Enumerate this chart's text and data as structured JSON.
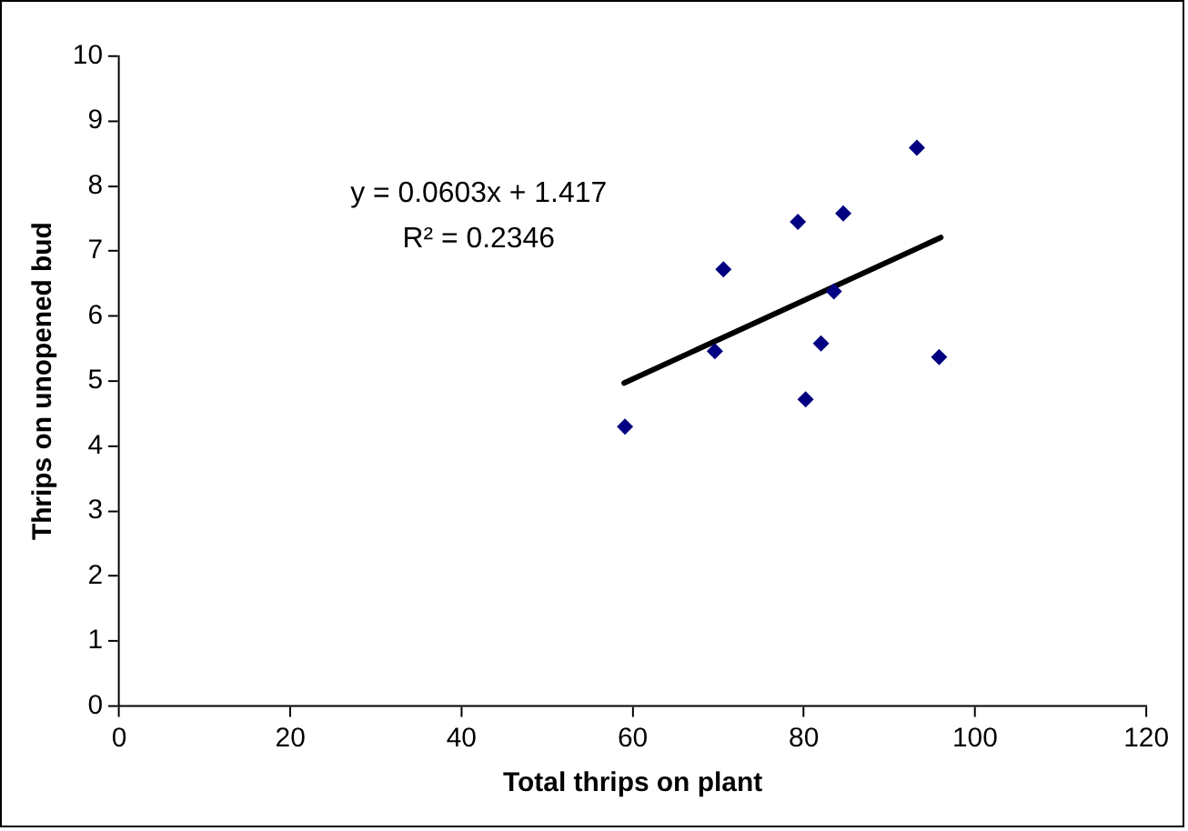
{
  "chart_data": {
    "type": "scatter",
    "xlabel": "Total thrips on plant",
    "ylabel": "Thrips on unopened bud",
    "series": [
      {
        "color": "#000080",
        "x": [
          59.1,
          69.6,
          70.6,
          79.3,
          80.2,
          82.0,
          83.5,
          84.6,
          93.2,
          95.8
        ],
        "values": [
          4.3,
          5.46,
          6.72,
          7.45,
          4.72,
          5.58,
          6.38,
          7.58,
          8.59,
          5.37
        ]
      },
      {
        "type": "line",
        "color": "#000000",
        "marker": "none",
        "x": [
          59,
          96
        ],
        "values": [
          4.97,
          7.21
        ]
      }
    ],
    "xlim": [
      0,
      120
    ],
    "xticks": [
      0,
      20,
      40,
      60,
      80,
      100,
      120
    ],
    "ylim": [
      0,
      10
    ],
    "yticks": [
      0,
      1,
      2,
      3,
      4,
      5,
      6,
      7,
      8,
      9,
      10
    ],
    "grid": false,
    "legend": false,
    "marker": "diamond",
    "annotations": [
      "y = 0.0603x + 1.417",
      "R² = 0.2346"
    ]
  }
}
